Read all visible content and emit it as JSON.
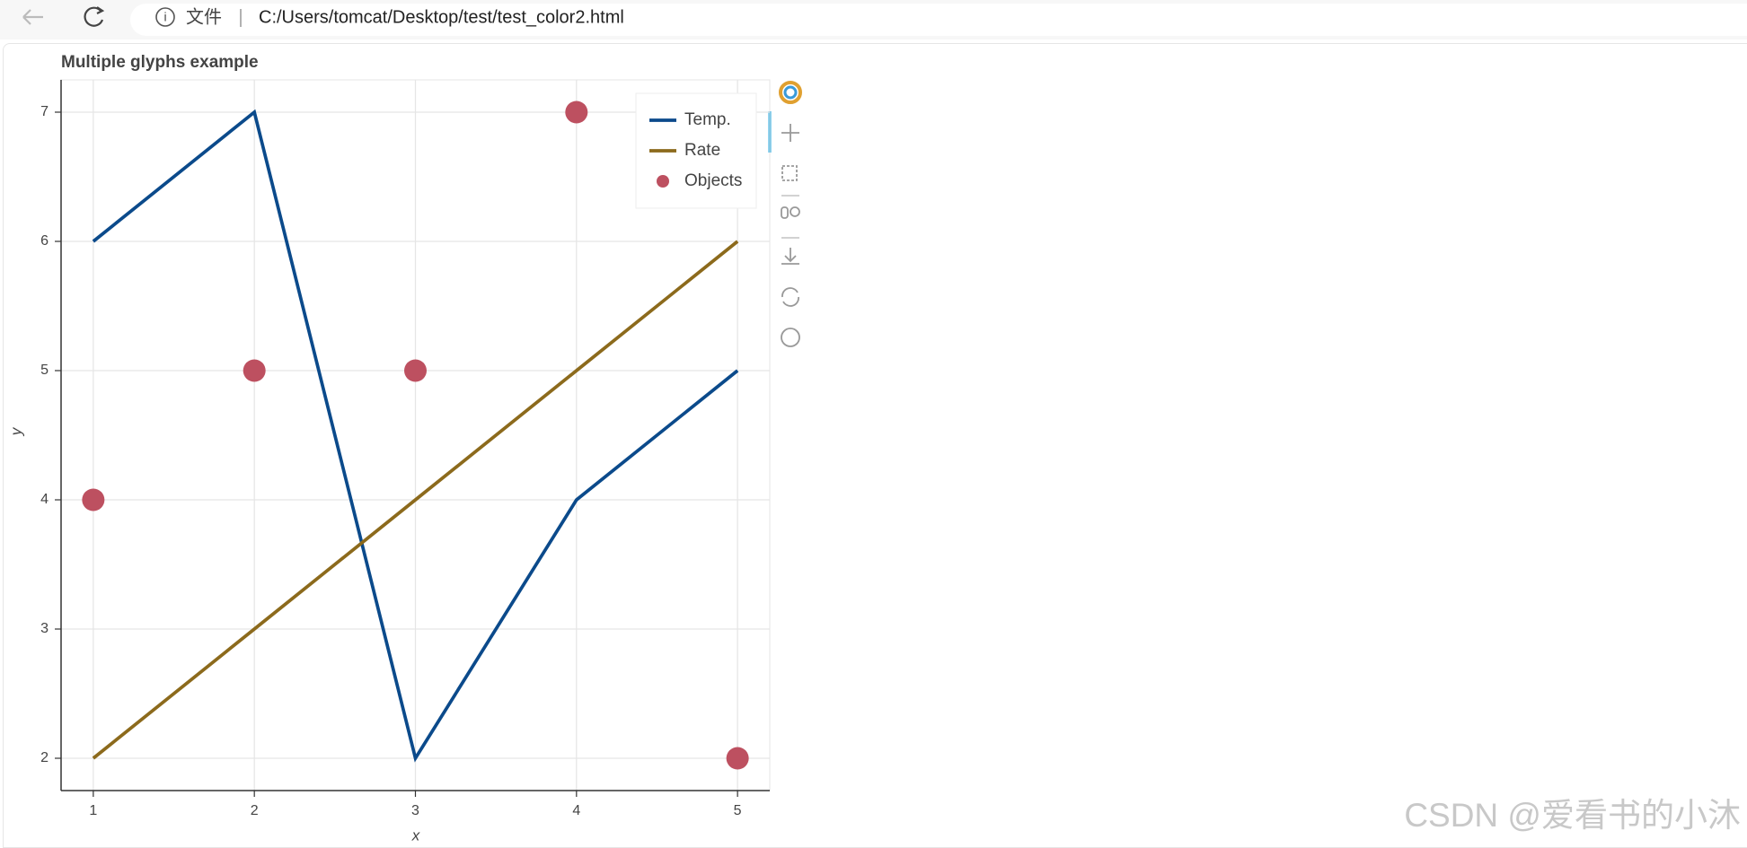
{
  "browser": {
    "address_label": "文件",
    "url": "C:/Users/tomcat/Desktop/test/test_color2.html"
  },
  "chart_data": {
    "type": "line",
    "title": "Multiple glyphs example",
    "x_label": "x",
    "y_label": "y",
    "x": [
      1,
      2,
      3,
      4,
      5
    ],
    "series": [
      {
        "name": "Temp.",
        "glyph": "line",
        "color": "#0b4a8b",
        "values": [
          6,
          7,
          2,
          4,
          5
        ]
      },
      {
        "name": "Rate",
        "glyph": "line",
        "color": "#8c6a1c",
        "values": [
          2,
          3,
          4,
          5,
          6
        ]
      },
      {
        "name": "Objects",
        "glyph": "circle",
        "color": "#bd5060",
        "values": [
          4,
          5,
          5,
          7,
          2
        ]
      }
    ],
    "xlim": [
      0.8,
      5.2
    ],
    "xticks": [
      1,
      2,
      3,
      4,
      5
    ],
    "ylim": [
      1.75,
      7.25
    ],
    "yticks": [
      2,
      3,
      4,
      5,
      6,
      7
    ],
    "grid": true,
    "legend": "top-right"
  },
  "watermark": "CSDN @爱看书的小沐"
}
